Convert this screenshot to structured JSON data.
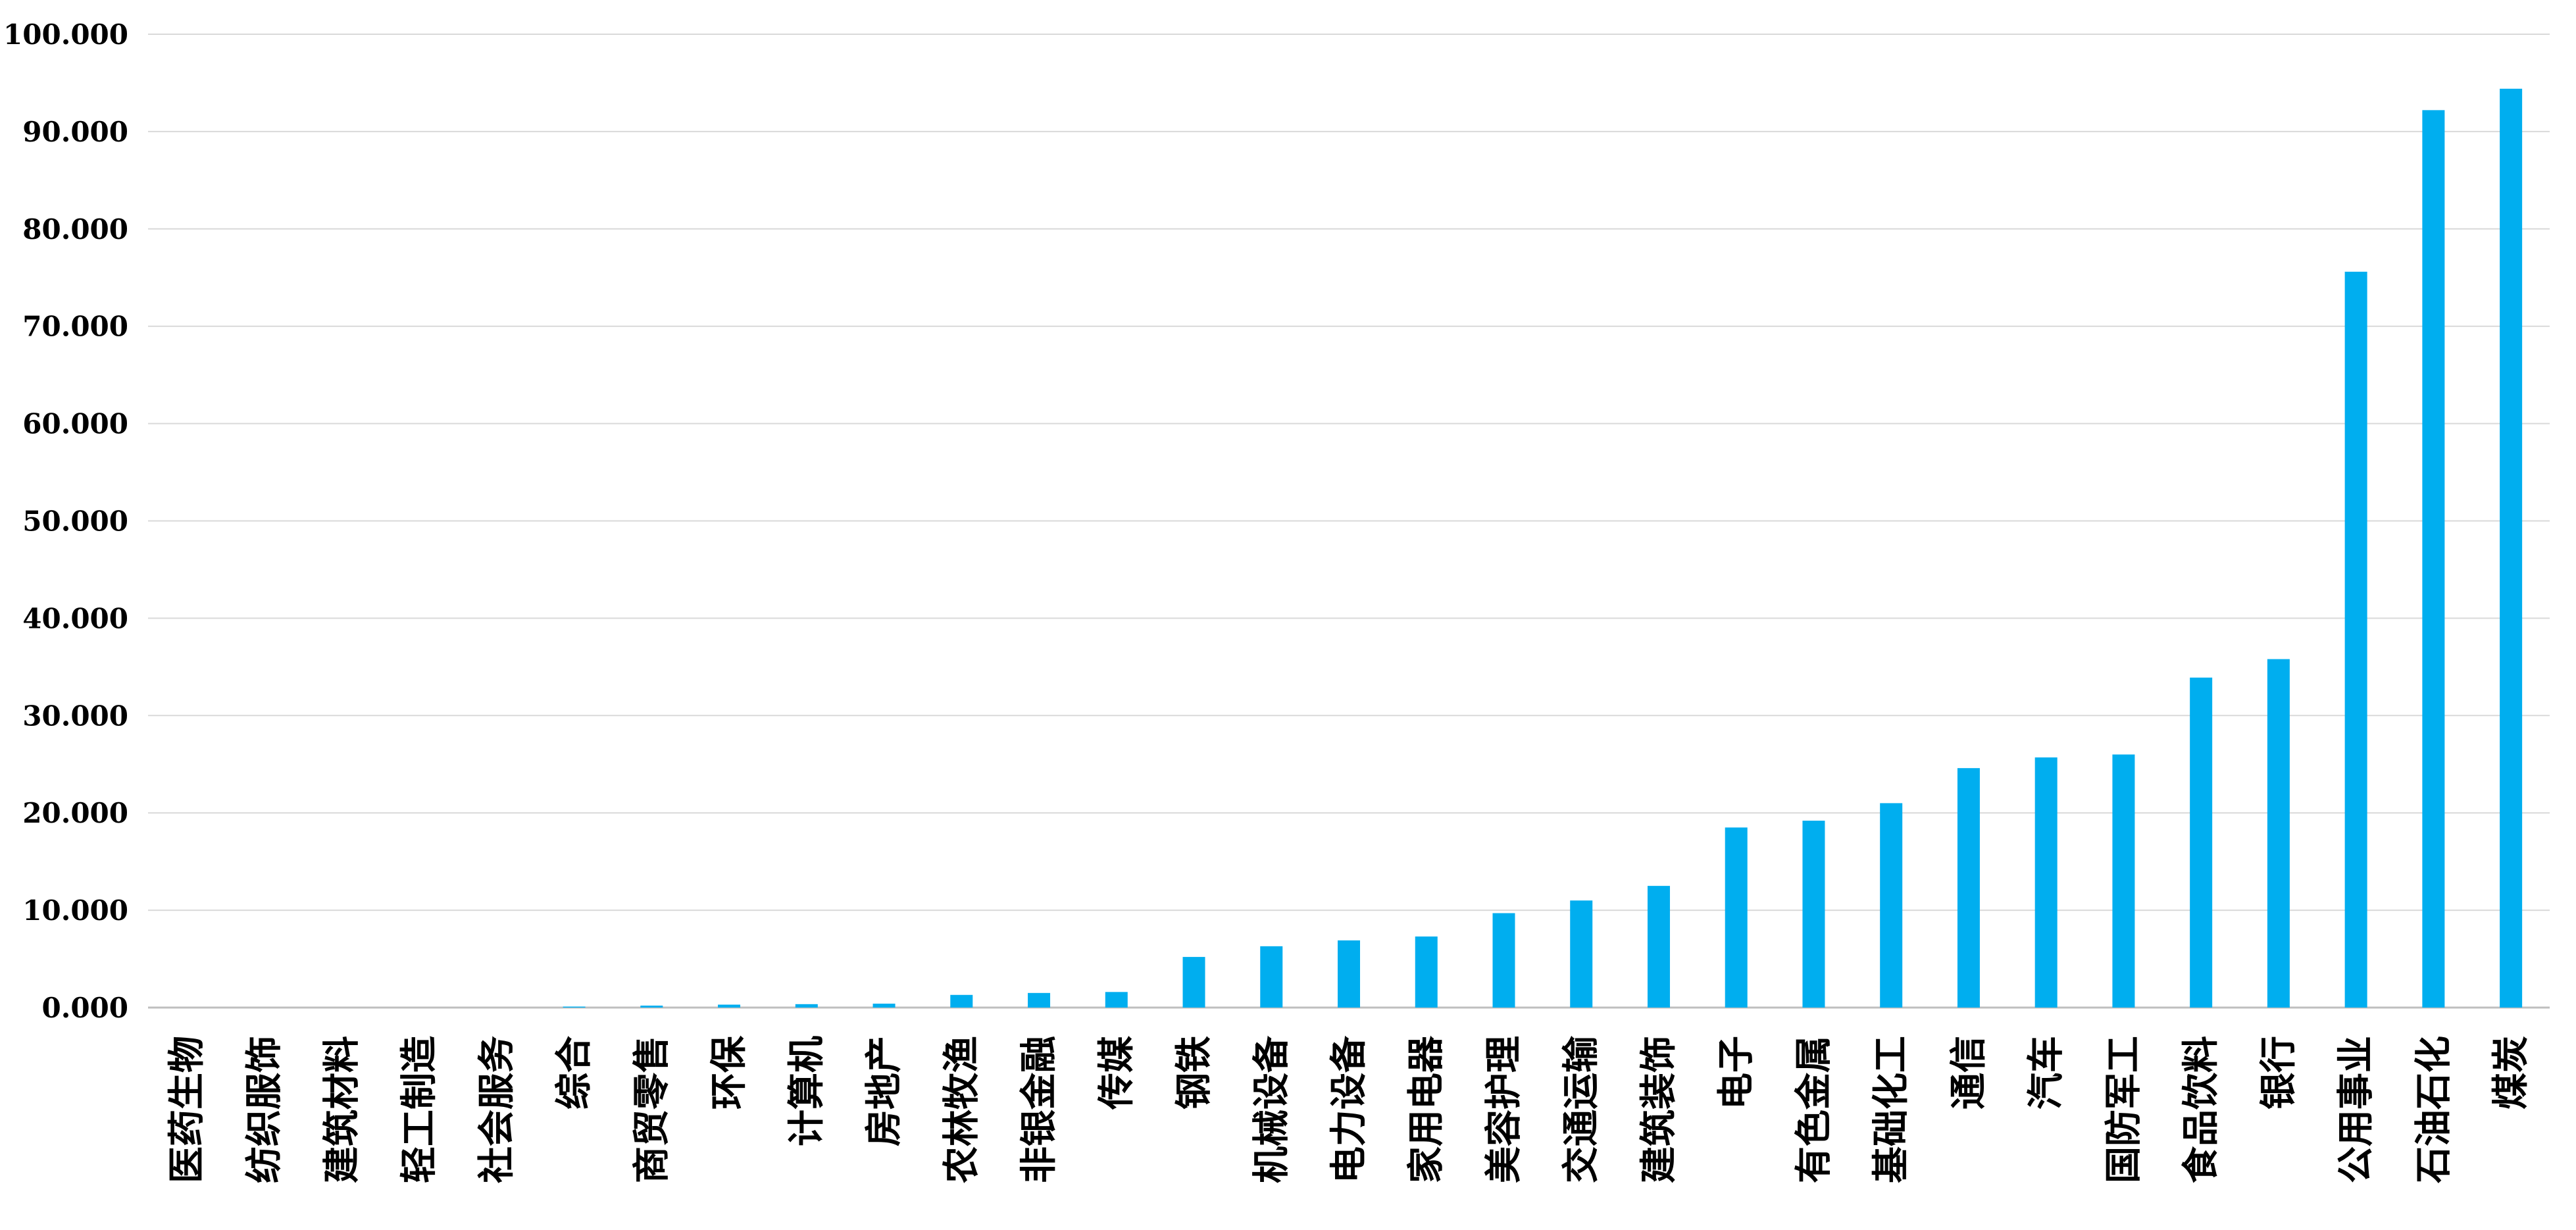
{
  "chart_data": {
    "type": "bar",
    "title": "",
    "xlabel": "",
    "ylabel": "",
    "ylim": [
      0,
      100
    ],
    "yticks": [
      "0.000",
      "10.000",
      "20.000",
      "30.000",
      "40.000",
      "50.000",
      "60.000",
      "70.000",
      "80.000",
      "90.000",
      "100.000"
    ],
    "grid": true,
    "bar_color": "#00AEEF",
    "categories": [
      "医药生物",
      "纺织服饰",
      "建筑材料",
      "轻工制造",
      "社会服务",
      "综合",
      "商贸零售",
      "环保",
      "计算机",
      "房地产",
      "农林牧渔",
      "非银金融",
      "传媒",
      "钢铁",
      "机械设备",
      "电力设备",
      "家用电器",
      "美容护理",
      "交通运输",
      "建筑装饰",
      "电子",
      "有色金属",
      "基础化工",
      "通信",
      "汽车",
      "国防军工",
      "食品饮料",
      "银行",
      "公用事业",
      "石油石化",
      "煤炭"
    ],
    "values": [
      0,
      0,
      0,
      0,
      0,
      0.1,
      0.2,
      0.3,
      0.35,
      0.4,
      1.3,
      1.5,
      1.6,
      5.2,
      6.3,
      6.9,
      7.3,
      9.7,
      11.0,
      12.5,
      18.5,
      19.2,
      21.0,
      24.6,
      25.7,
      26.0,
      33.9,
      35.8,
      75.6,
      92.2,
      94.4
    ]
  }
}
